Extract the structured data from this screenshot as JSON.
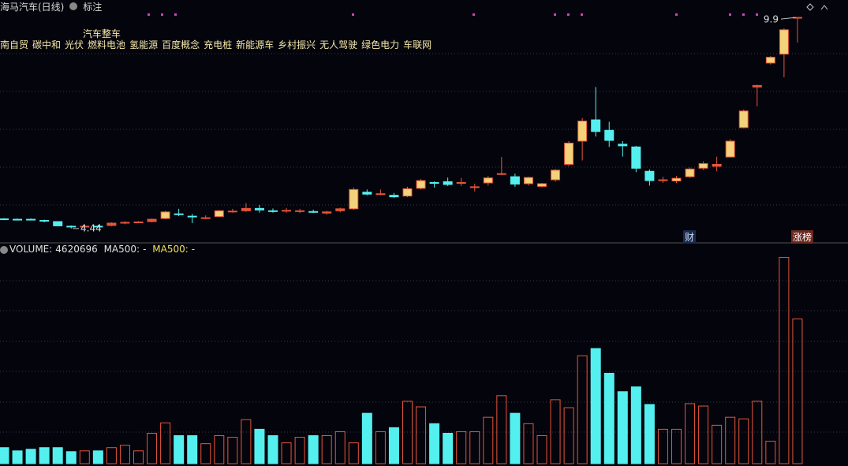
{
  "header": {
    "title": "海马汽车(日线)",
    "annotate": "标注"
  },
  "concept_above": "汽车整车",
  "concepts": [
    "南自贸",
    "碳中和",
    "光伏",
    "燃料电池",
    "氢能源",
    "百度概念",
    "充电桩",
    "新能源车",
    "乡村振兴",
    "无人驾驶",
    "绿色电力",
    "车联网"
  ],
  "markers": [
    "财",
    "涨榜"
  ],
  "chart_data": [
    {
      "type": "candlestick",
      "open": [
        4.69,
        4.68,
        4.68,
        4.65,
        4.62,
        4.5,
        4.49,
        4.5,
        4.52,
        4.58,
        4.6,
        4.62,
        4.7,
        4.82,
        4.76,
        4.7,
        4.75,
        4.88,
        4.9,
        4.96,
        4.9,
        4.9,
        4.88,
        4.88,
        4.84,
        4.9,
        4.95,
        5.38,
        5.33,
        5.3,
        5.28,
        5.48,
        5.63,
        5.65,
        5.63,
        5.52,
        5.62,
        5.85,
        5.78,
        5.6,
        5.53,
        5.7,
        6.1,
        6.7,
        7.25,
        6.98,
        6.62,
        6.55,
        5.92,
        5.7,
        5.67,
        5.78,
        6.0,
        6.05,
        6.29,
        7.05,
        8.1,
        8.72,
        8.95,
        9.9
      ],
      "high": [
        4.71,
        4.7,
        4.7,
        4.67,
        4.63,
        4.52,
        4.52,
        4.53,
        4.6,
        4.63,
        4.63,
        4.7,
        4.9,
        4.95,
        4.82,
        4.78,
        4.92,
        4.95,
        5.1,
        5.05,
        4.96,
        4.97,
        4.95,
        4.93,
        4.9,
        4.98,
        5.5,
        5.45,
        5.45,
        5.36,
        5.52,
        5.72,
        5.66,
        5.76,
        5.75,
        5.6,
        5.8,
        6.29,
        5.86,
        5.78,
        5.62,
        5.98,
        6.7,
        7.3,
        8.1,
        7.2,
        6.7,
        6.58,
        5.97,
        5.78,
        5.8,
        6.02,
        6.18,
        6.3,
        6.75,
        7.52,
        8.16,
        8.9,
        9.62,
        9.9
      ],
      "low": [
        4.66,
        4.66,
        4.65,
        4.6,
        4.5,
        4.44,
        4.46,
        4.47,
        4.5,
        4.55,
        4.58,
        4.6,
        4.68,
        4.76,
        4.58,
        4.68,
        4.73,
        4.85,
        4.87,
        4.85,
        4.85,
        4.85,
        4.84,
        4.84,
        4.8,
        4.86,
        4.92,
        5.3,
        5.3,
        5.23,
        5.25,
        5.45,
        5.5,
        5.54,
        5.54,
        5.4,
        5.55,
        5.82,
        5.52,
        5.55,
        5.5,
        5.65,
        6.05,
        6.2,
        6.82,
        6.55,
        6.3,
        5.9,
        5.55,
        5.62,
        5.62,
        5.75,
        5.95,
        5.92,
        6.28,
        7.03,
        7.6,
        8.68,
        8.35,
        9.25
      ],
      "close": [
        4.68,
        4.67,
        4.66,
        4.63,
        4.51,
        4.48,
        4.5,
        4.49,
        4.58,
        4.6,
        4.61,
        4.68,
        4.87,
        4.8,
        4.75,
        4.72,
        4.9,
        4.89,
        4.96,
        4.92,
        4.88,
        4.91,
        4.9,
        4.86,
        4.87,
        4.95,
        5.45,
        5.33,
        5.34,
        5.26,
        5.47,
        5.68,
        5.62,
        5.58,
        5.63,
        5.52,
        5.75,
        5.86,
        5.59,
        5.76,
        5.6,
        5.95,
        6.65,
        7.22,
        6.95,
        6.72,
        6.58,
        6.0,
        5.68,
        5.7,
        5.74,
        5.98,
        6.12,
        6.1,
        6.7,
        7.48,
        8.14,
        8.87,
        9.58,
        9.9
      ],
      "up_color": "#e8553a",
      "up_fill": "#f2d27a",
      "down_color": "#54f0f0",
      "ylim": [
        4.07,
        10.35
      ]
    },
    {
      "type": "bar",
      "label": "VOLUME:",
      "values": [
        511000,
        408000,
        460000,
        511000,
        511000,
        383000,
        408000,
        408000,
        511000,
        587000,
        408000,
        970000,
        1302000,
        894000,
        894000,
        638000,
        894000,
        842000,
        1404000,
        1098000,
        894000,
        664000,
        842000,
        894000,
        894000,
        1021000,
        664000,
        1608000,
        1021000,
        1149000,
        1991000,
        1813000,
        1276000,
        970000,
        1021000,
        1021000,
        1481000,
        2170000,
        1608000,
        1276000,
        894000,
        2042000,
        1787000,
        3446000,
        3676000,
        2885000,
        2298000,
        2451000,
        1889000,
        1098000,
        1098000,
        1915000,
        1838000,
        1225000,
        1481000,
        1430000,
        1991000,
        715000,
        6586000,
        4620696
      ],
      "up_color": "#e8553a",
      "down_color": "#54f0f0",
      "ylim": [
        0,
        7000000
      ],
      "ma": [
        {
          "name": "MA500:",
          "value": "-",
          "color": "#e0e0e0"
        },
        {
          "name": "MA500:",
          "value": "-",
          "color": "#f0e060"
        }
      ]
    }
  ]
}
